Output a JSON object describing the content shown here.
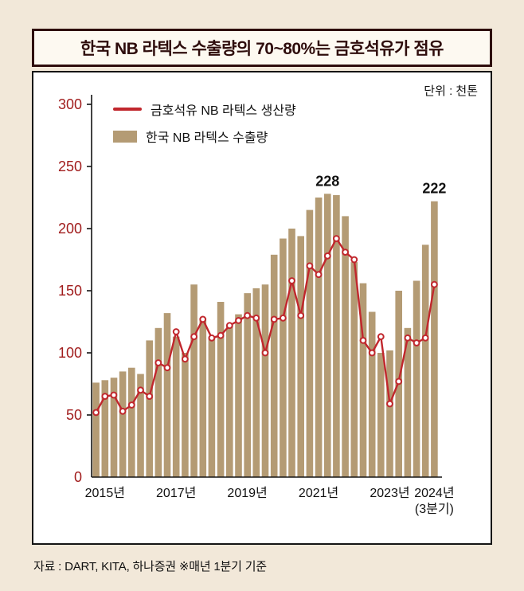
{
  "colors": {
    "page_background": "#f2e8d9",
    "panel_background": "#ffffff",
    "title_maroon": "#2e0c0c",
    "axis_number_red": "#a11d1d",
    "bar_tan": "#b49b74",
    "line_red": "#c1272d",
    "text_black": "#111111"
  },
  "header": {
    "title": "한국 NB 라텍스 수출량의 70~80%는 금호석유가 점유"
  },
  "unit_label": "단위 : 천톤",
  "legend": [
    {
      "label": "금호석유 NB 라텍스 생산량",
      "color": "#c1272d",
      "type": "line"
    },
    {
      "label": "한국 NB 라텍스 수출량",
      "color": "#b49b74",
      "type": "bar"
    }
  ],
  "source_note": "자료 : DART, KITA, 하나증권 ※매년 1분기 기준",
  "chart_data": {
    "type": "bar",
    "subtype": "bar series with overlaid line series",
    "unit": "천톤",
    "frequency": "quarterly",
    "start": "2015 Q1",
    "end": "2024 Q3",
    "grid": false,
    "legend_position": "top-left-inside",
    "y_axis": {
      "min": 0,
      "max": 300,
      "step": 50,
      "ticks": [
        300,
        250,
        200,
        150,
        100,
        50,
        0
      ]
    },
    "x_ticks": [
      {
        "label": "2015년",
        "index": 1
      },
      {
        "label": "2017년",
        "index": 9
      },
      {
        "label": "2019년",
        "index": 17
      },
      {
        "label": "2021년",
        "index": 25
      },
      {
        "label": "2023년",
        "index": 33
      },
      {
        "label": "2024년",
        "sub": "(3분기)",
        "index": 38
      }
    ],
    "series": [
      {
        "name": "한국 NB 라텍스 수출량",
        "type": "bar",
        "color": "#b49b74",
        "values": [
          76,
          78,
          80,
          85,
          88,
          83,
          110,
          120,
          132,
          113,
          100,
          155,
          128,
          113,
          141,
          122,
          131,
          148,
          152,
          155,
          179,
          192,
          200,
          194,
          215,
          225,
          228,
          227,
          210,
          173,
          156,
          133,
          100,
          102,
          150,
          120,
          158,
          187,
          222
        ]
      },
      {
        "name": "금호석유 NB 라텍스 생산량",
        "type": "line",
        "color": "#c1272d",
        "values": [
          52,
          65,
          66,
          53,
          58,
          70,
          65,
          92,
          88,
          117,
          95,
          113,
          127,
          112,
          114,
          122,
          126,
          130,
          128,
          100,
          127,
          128,
          158,
          130,
          170,
          163,
          178,
          192,
          181,
          175,
          110,
          100,
          113,
          59,
          77,
          112,
          108,
          112,
          155
        ]
      }
    ],
    "annotations": [
      {
        "text": "228",
        "index": 26,
        "value": 228
      },
      {
        "text": "222",
        "index": 38,
        "value": 222
      }
    ]
  }
}
